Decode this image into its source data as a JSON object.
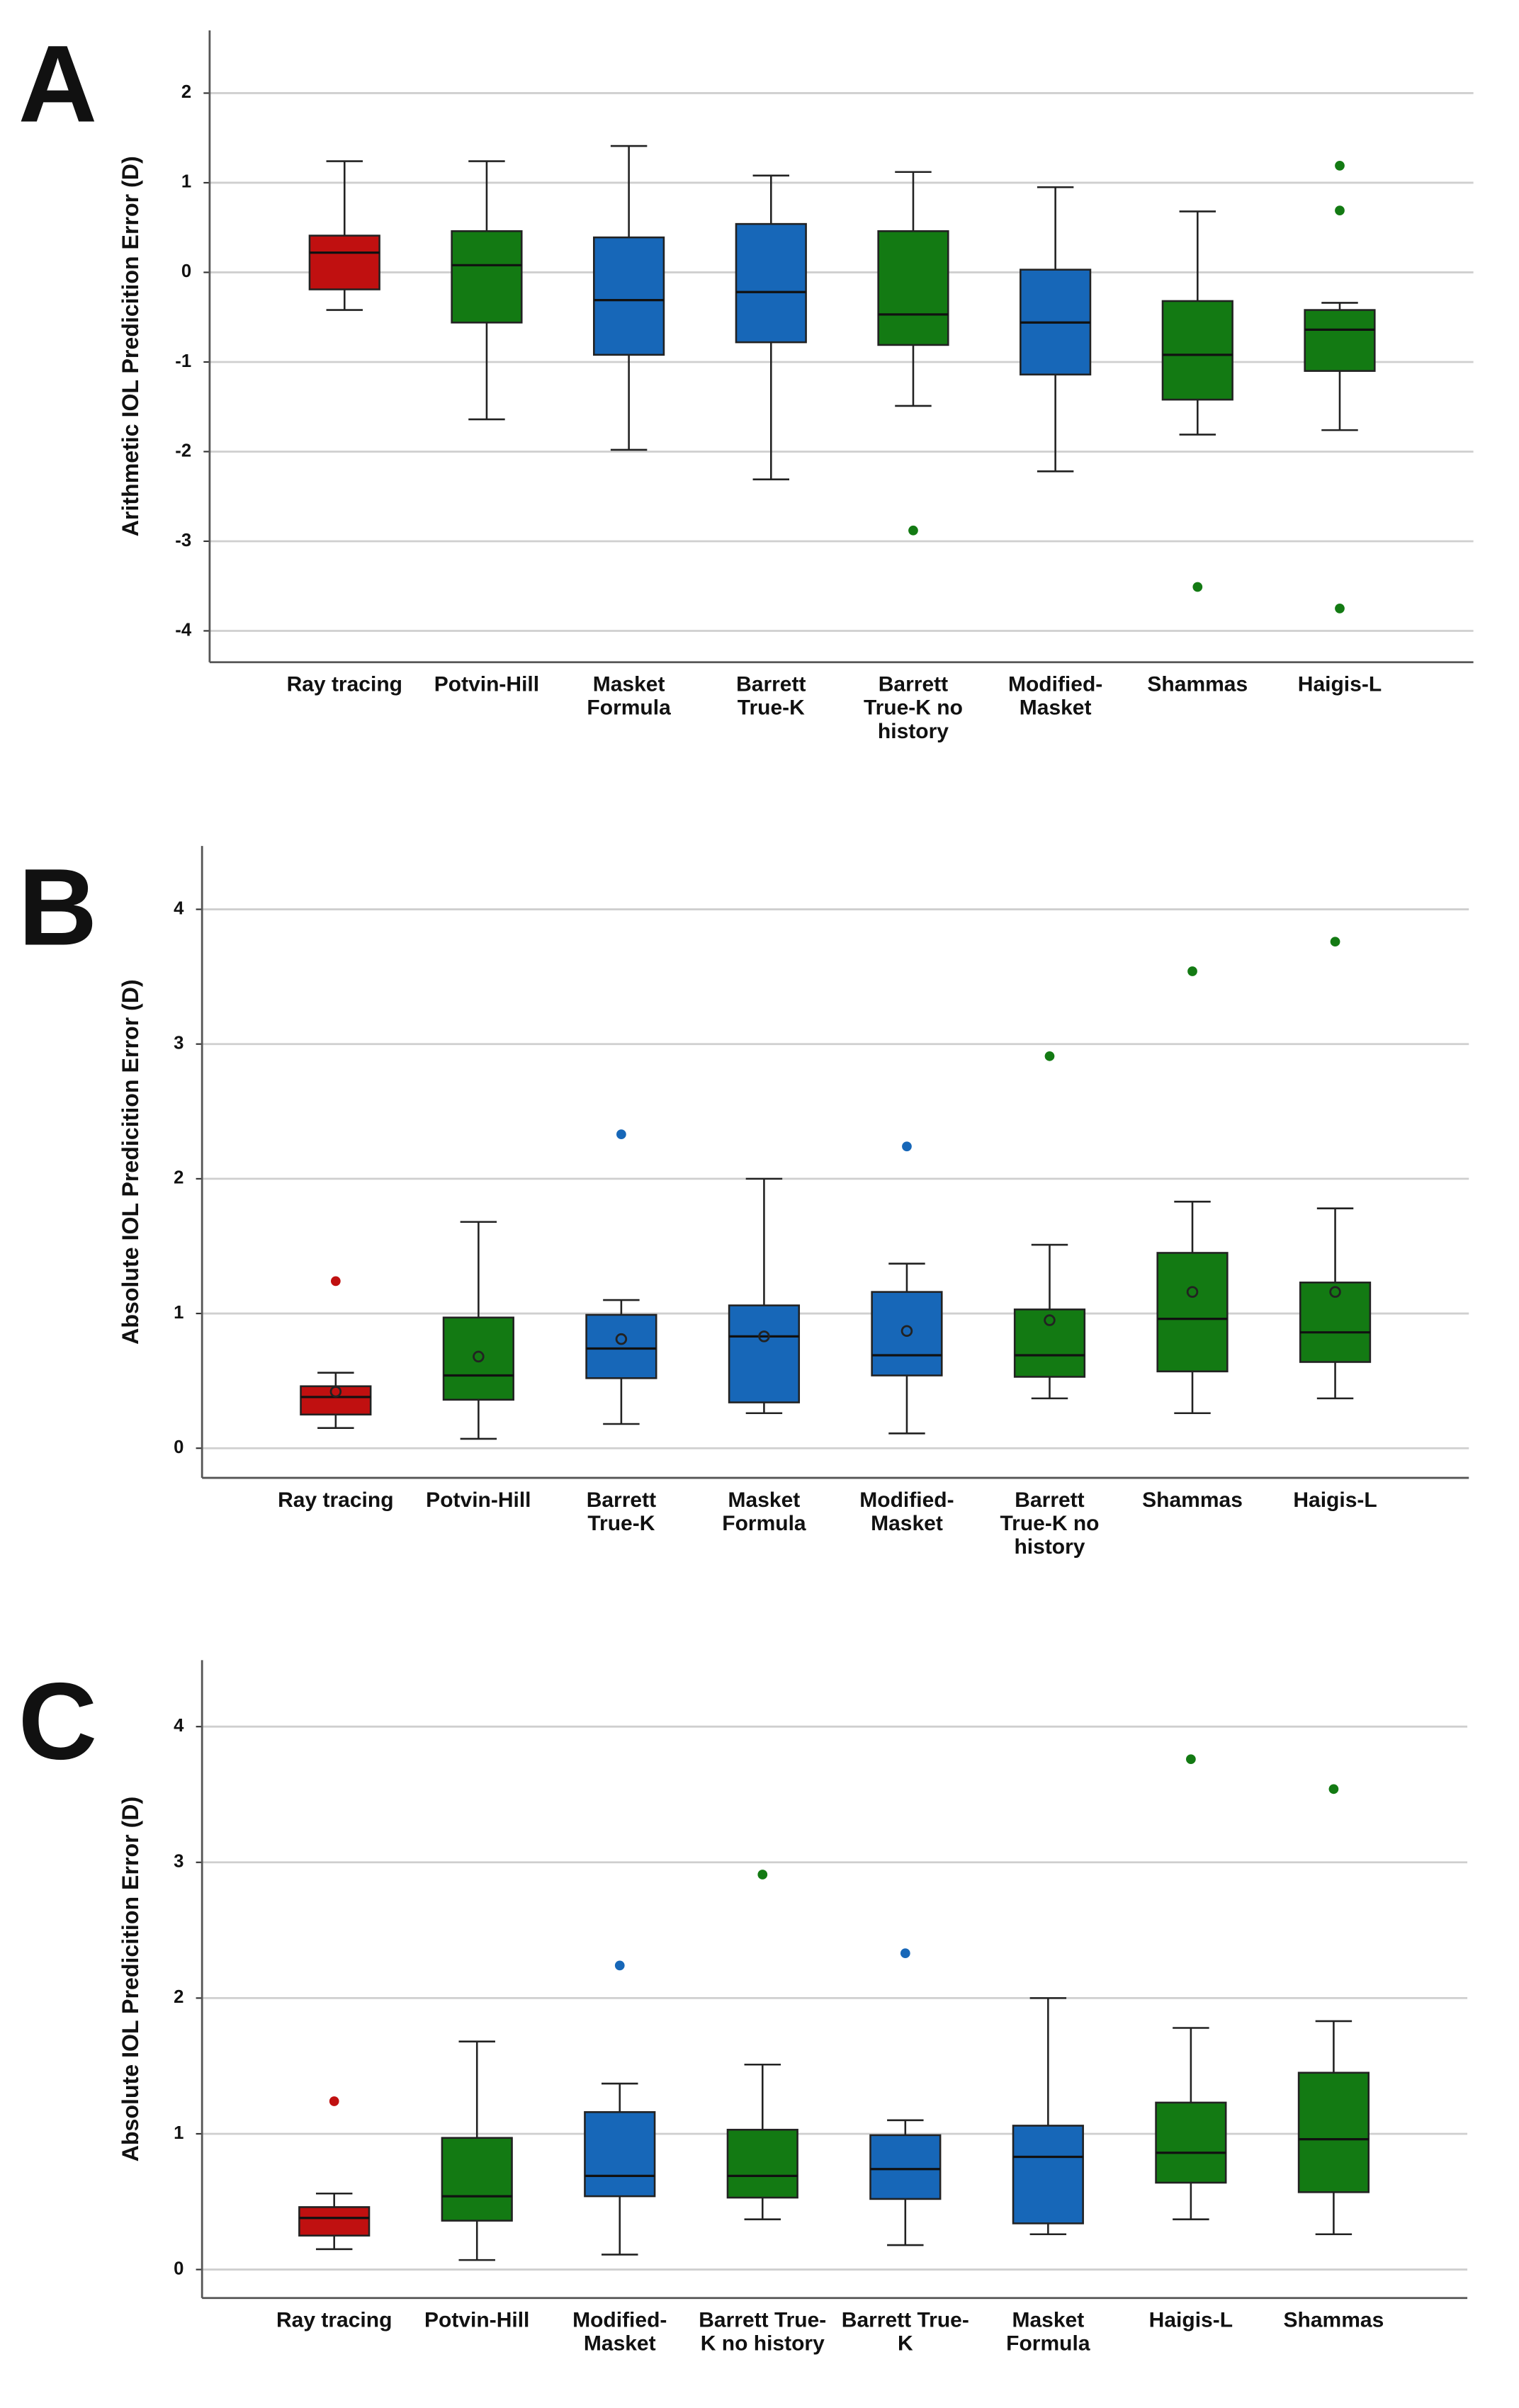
{
  "chart_data": [
    {
      "type": "box",
      "label": "A",
      "ylabel": "Arithmetic IOL Predicition Error (D)",
      "ylim": [
        -4.35,
        2.7
      ],
      "yticks": [
        -4,
        -3,
        -2,
        -1,
        0,
        1,
        2
      ],
      "grid": true,
      "show_mean": false,
      "categories": [
        "Ray tracing",
        "Potvin-Hill",
        "Masket\nFormula",
        "Barrett\nTrue-K",
        "Barrett\nTrue-K no\nhistory",
        "Modified-\nMasket",
        "Shammas",
        "Haigis-L"
      ],
      "colors": [
        "#c01010",
        "#137a13",
        "#1767b8",
        "#1767b8",
        "#137a13",
        "#1767b8",
        "#137a13",
        "#137a13"
      ],
      "boxes": [
        {
          "whislo": -0.42,
          "q1": -0.19,
          "med": 0.22,
          "q3": 0.41,
          "whishi": 1.24,
          "fliers": []
        },
        {
          "whislo": -1.64,
          "q1": -0.56,
          "med": 0.08,
          "q3": 0.46,
          "whishi": 1.24,
          "fliers": []
        },
        {
          "whislo": -1.98,
          "q1": -0.92,
          "med": -0.31,
          "q3": 0.39,
          "whishi": 1.41,
          "fliers": []
        },
        {
          "whislo": -2.31,
          "q1": -0.78,
          "med": -0.22,
          "q3": 0.54,
          "whishi": 1.08,
          "fliers": []
        },
        {
          "whislo": -1.49,
          "q1": -0.81,
          "med": -0.47,
          "q3": 0.46,
          "whishi": 1.12,
          "fliers": [
            -2.88
          ]
        },
        {
          "whislo": -2.22,
          "q1": -1.14,
          "med": -0.56,
          "q3": 0.03,
          "whishi": 0.95,
          "fliers": []
        },
        {
          "whislo": -1.81,
          "q1": -1.42,
          "med": -0.92,
          "q3": -0.32,
          "whishi": 0.68,
          "fliers": [
            -3.51
          ]
        },
        {
          "whislo": -1.76,
          "q1": -1.1,
          "med": -0.64,
          "q3": -0.42,
          "whishi": -0.34,
          "fliers": [
            1.19,
            0.69,
            -3.75
          ]
        }
      ]
    },
    {
      "type": "box",
      "label": "B",
      "ylabel": "Absolute IOL Predicition Error (D)",
      "ylim": [
        -0.22,
        4.47
      ],
      "yticks": [
        0,
        1,
        2,
        3,
        4
      ],
      "grid": true,
      "show_mean": true,
      "categories": [
        "Ray tracing",
        "Potvin-Hill",
        "Barrett\nTrue-K",
        "Masket\nFormula",
        "Modified-\nMasket",
        "Barrett\nTrue-K no\nhistory",
        "Shammas",
        "Haigis-L"
      ],
      "colors": [
        "#c01010",
        "#137a13",
        "#1767b8",
        "#1767b8",
        "#1767b8",
        "#137a13",
        "#137a13",
        "#137a13"
      ],
      "boxes": [
        {
          "whislo": 0.15,
          "q1": 0.25,
          "med": 0.38,
          "q3": 0.46,
          "whishi": 0.56,
          "fliers": [
            1.24
          ],
          "mean": 0.42
        },
        {
          "whislo": 0.07,
          "q1": 0.36,
          "med": 0.54,
          "q3": 0.97,
          "whishi": 1.68,
          "fliers": [],
          "mean": 0.68
        },
        {
          "whislo": 0.18,
          "q1": 0.52,
          "med": 0.74,
          "q3": 0.99,
          "whishi": 1.1,
          "fliers": [
            2.33
          ],
          "mean": 0.81
        },
        {
          "whislo": 0.26,
          "q1": 0.34,
          "med": 0.83,
          "q3": 1.06,
          "whishi": 2.0,
          "fliers": [],
          "mean": 0.83
        },
        {
          "whislo": 0.11,
          "q1": 0.54,
          "med": 0.69,
          "q3": 1.16,
          "whishi": 1.37,
          "fliers": [
            2.24
          ],
          "mean": 0.87
        },
        {
          "whislo": 0.37,
          "q1": 0.53,
          "med": 0.69,
          "q3": 1.03,
          "whishi": 1.51,
          "fliers": [
            2.91
          ],
          "mean": 0.95
        },
        {
          "whislo": 0.26,
          "q1": 0.57,
          "med": 0.96,
          "q3": 1.45,
          "whishi": 1.83,
          "fliers": [
            3.54
          ],
          "mean": 1.16
        },
        {
          "whislo": 0.37,
          "q1": 0.64,
          "med": 0.86,
          "q3": 1.23,
          "whishi": 1.78,
          "fliers": [
            3.76
          ],
          "mean": 1.16
        }
      ]
    },
    {
      "type": "box",
      "label": "C",
      "ylabel": "Absolute IOL Predicition Error (D)",
      "ylim": [
        -0.21,
        4.49
      ],
      "yticks": [
        0,
        1,
        2,
        3,
        4
      ],
      "grid": true,
      "show_mean": false,
      "categories": [
        "Ray tracing",
        "Potvin-Hill",
        "Modified-\nMasket",
        "Barrett True-\nK no history",
        "Barrett True-\nK",
        "Masket\nFormula",
        "Haigis-L",
        "Shammas"
      ],
      "colors": [
        "#c01010",
        "#137a13",
        "#1767b8",
        "#137a13",
        "#1767b8",
        "#1767b8",
        "#137a13",
        "#137a13"
      ],
      "boxes": [
        {
          "whislo": 0.15,
          "q1": 0.25,
          "med": 0.38,
          "q3": 0.46,
          "whishi": 0.56,
          "fliers": [
            1.24
          ]
        },
        {
          "whislo": 0.07,
          "q1": 0.36,
          "med": 0.54,
          "q3": 0.97,
          "whishi": 1.68,
          "fliers": []
        },
        {
          "whislo": 0.11,
          "q1": 0.54,
          "med": 0.69,
          "q3": 1.16,
          "whishi": 1.37,
          "fliers": [
            2.24
          ]
        },
        {
          "whislo": 0.37,
          "q1": 0.53,
          "med": 0.69,
          "q3": 1.03,
          "whishi": 1.51,
          "fliers": [
            2.91
          ]
        },
        {
          "whislo": 0.18,
          "q1": 0.52,
          "med": 0.74,
          "q3": 0.99,
          "whishi": 1.1,
          "fliers": [
            2.33
          ]
        },
        {
          "whislo": 0.26,
          "q1": 0.34,
          "med": 0.83,
          "q3": 1.06,
          "whishi": 2.0,
          "fliers": []
        },
        {
          "whislo": 0.37,
          "q1": 0.64,
          "med": 0.86,
          "q3": 1.23,
          "whishi": 1.78,
          "fliers": [
            3.76
          ]
        },
        {
          "whislo": 0.26,
          "q1": 0.57,
          "med": 0.96,
          "q3": 1.45,
          "whishi": 1.83,
          "fliers": [
            3.54
          ]
        }
      ]
    }
  ]
}
